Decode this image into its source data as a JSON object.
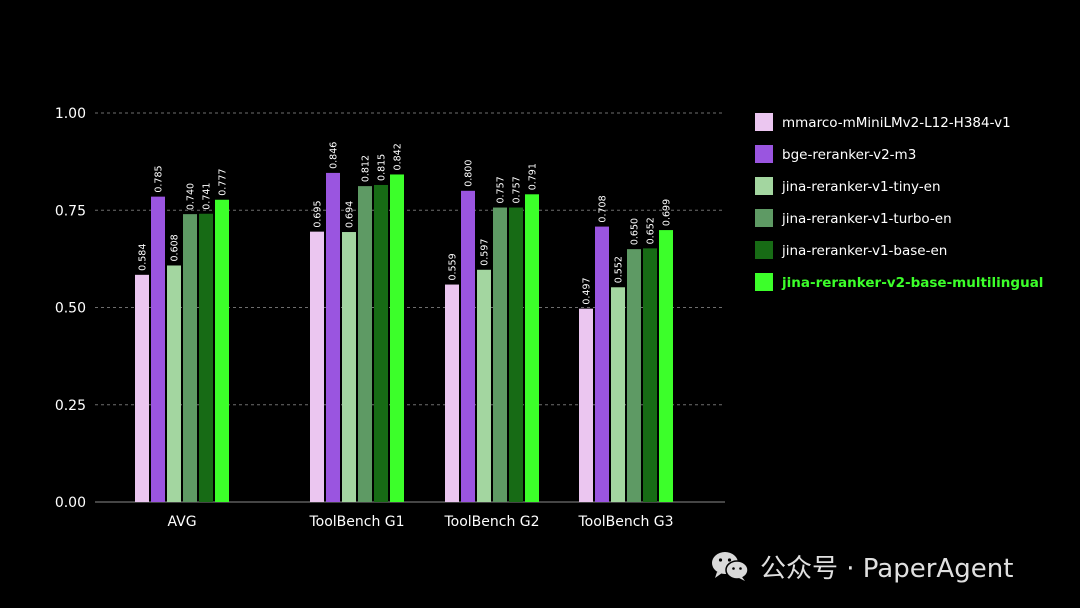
{
  "chart_data": {
    "type": "bar",
    "categories": [
      "AVG",
      "ToolBench G1",
      "ToolBench G2",
      "ToolBench G3"
    ],
    "ylim": [
      0,
      1.0
    ],
    "yticks": [
      "0.00",
      "0.25",
      "0.50",
      "0.75",
      "1.00"
    ],
    "grid": true,
    "legend_position": "right",
    "series": [
      {
        "name": "mmarco-mMiniLMv2-L12-H384-v1",
        "color": "#ebc6f0",
        "values": [
          0.584,
          0.695,
          0.559,
          0.497
        ],
        "labels": [
          "0.584",
          "0.695",
          "0.559",
          "0.497"
        ]
      },
      {
        "name": "bge-reranker-v2-m3",
        "color": "#9a55e0",
        "values": [
          0.785,
          0.846,
          0.8,
          0.708
        ],
        "labels": [
          "0.785",
          "0.846",
          "0.800",
          "0.708"
        ]
      },
      {
        "name": "jina-reranker-v1-tiny-en",
        "color": "#a3d6a0",
        "values": [
          0.608,
          0.694,
          0.597,
          0.552
        ],
        "labels": [
          "0.608",
          "0.694",
          "0.597",
          "0.552"
        ]
      },
      {
        "name": "jina-reranker-v1-turbo-en",
        "color": "#5e9a64",
        "values": [
          0.74,
          0.812,
          0.757,
          0.65
        ],
        "labels": [
          "0.740",
          "0.812",
          "0.757",
          "0.650"
        ]
      },
      {
        "name": "jina-reranker-v1-base-en",
        "color": "#176b15",
        "values": [
          0.741,
          0.815,
          0.757,
          0.652
        ],
        "labels": [
          "0.741",
          "0.815",
          "0.757",
          "0.652"
        ]
      },
      {
        "name": "jina-reranker-v2-base-multilingual",
        "color": "#3cff2a",
        "highlight": true,
        "values": [
          0.777,
          0.842,
          0.791,
          0.699
        ],
        "labels": [
          "0.777",
          "0.842",
          "0.791",
          "0.699"
        ]
      }
    ]
  },
  "watermark": {
    "text": "公众号 · PaperAgent",
    "icon": "wechat-icon"
  }
}
